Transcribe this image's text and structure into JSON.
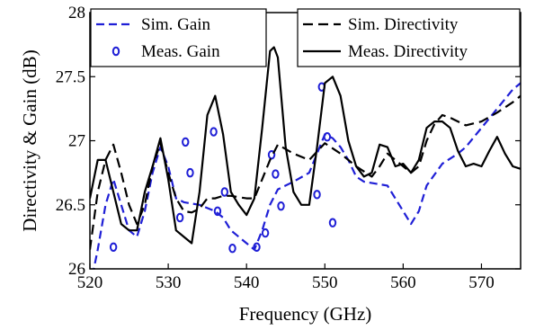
{
  "chart_data": {
    "type": "line",
    "title": "",
    "xlabel": "Frequency (GHz)",
    "ylabel": "Directivity & Gain (dB)",
    "xlim": [
      520,
      575
    ],
    "ylim": [
      26,
      28
    ],
    "xticks": [
      520,
      530,
      540,
      550,
      560,
      570
    ],
    "yticks": [
      26,
      26.5,
      27,
      27.5,
      28
    ],
    "xtick_labels": [
      "520",
      "530",
      "540",
      "550",
      "560",
      "570"
    ],
    "ytick_labels": [
      "26",
      "26.5",
      "27",
      "27.5",
      "28"
    ],
    "grid": false,
    "legends": [
      {
        "position": "top-left",
        "entries": [
          "Sim. Gain",
          "Meas. Gain"
        ]
      },
      {
        "position": "top-right",
        "entries": [
          "Sim. Directivity",
          "Meas. Directivity"
        ]
      }
    ],
    "series": [
      {
        "name": "Sim. Gain",
        "style": "dashed",
        "color": "#1f1fd6",
        "x": [
          520,
          521,
          522,
          523,
          524,
          525,
          526,
          527,
          528,
          529,
          530,
          531,
          532,
          534,
          536,
          537,
          538,
          540,
          541,
          542,
          543,
          544,
          546,
          548,
          549,
          550,
          551,
          552,
          553,
          554,
          555,
          558,
          560,
          561,
          562,
          563,
          565,
          567,
          568,
          570,
          572,
          574,
          575
        ],
        "y": [
          25.85,
          26.15,
          26.5,
          26.7,
          26.5,
          26.3,
          26.25,
          26.45,
          26.75,
          26.95,
          26.8,
          26.55,
          26.52,
          26.5,
          26.45,
          26.4,
          26.3,
          26.2,
          26.15,
          26.3,
          26.5,
          26.62,
          26.68,
          26.75,
          26.9,
          27.05,
          27.02,
          26.95,
          26.85,
          26.72,
          26.68,
          26.65,
          26.45,
          26.35,
          26.45,
          26.65,
          26.82,
          26.9,
          26.95,
          27.1,
          27.25,
          27.4,
          27.45
        ]
      },
      {
        "name": "Meas. Gain",
        "style": "markers",
        "color": "#1f1fd6",
        "x": [
          523,
          531.5,
          532.2,
          532.8,
          535.8,
          536.3,
          537.2,
          538.2,
          541.3,
          542.4,
          543.2,
          543.7,
          544.4,
          549,
          549.6,
          550.3,
          551
        ],
        "y": [
          26.17,
          26.4,
          26.99,
          26.75,
          27.07,
          26.45,
          26.6,
          26.16,
          26.17,
          26.28,
          26.89,
          26.74,
          26.49,
          26.58,
          27.42,
          27.03,
          26.36
        ]
      },
      {
        "name": "Sim. Directivity",
        "style": "dashed",
        "color": "#000000",
        "x": [
          520,
          521,
          522,
          523,
          524,
          525,
          526,
          527,
          528,
          529,
          530,
          531,
          532,
          533,
          534,
          535,
          536,
          537,
          538,
          540,
          541,
          542,
          543,
          544,
          546,
          548,
          550,
          552,
          554,
          556,
          557,
          558,
          560,
          561,
          562,
          563,
          564,
          565,
          566,
          568,
          570,
          572,
          574,
          575
        ],
        "y": [
          26.15,
          26.6,
          26.85,
          26.97,
          26.75,
          26.5,
          26.35,
          26.5,
          26.8,
          26.98,
          26.75,
          26.55,
          26.45,
          26.44,
          26.47,
          26.55,
          26.55,
          26.57,
          26.57,
          26.55,
          26.55,
          26.7,
          26.85,
          26.97,
          26.9,
          26.85,
          26.98,
          26.9,
          26.8,
          26.72,
          26.8,
          26.9,
          26.8,
          26.75,
          26.8,
          27.0,
          27.13,
          27.2,
          27.18,
          27.12,
          27.15,
          27.22,
          27.3,
          27.35
        ]
      },
      {
        "name": "Meas. Directivity",
        "style": "solid",
        "color": "#000000",
        "x": [
          520,
          521,
          522,
          523,
          524,
          525,
          526,
          527,
          528,
          529,
          530,
          531,
          532,
          533,
          534,
          535,
          536,
          537,
          538,
          539,
          540,
          541,
          542,
          543,
          543.5,
          544,
          545,
          546,
          547,
          548,
          549,
          550,
          551,
          552,
          553,
          554,
          555,
          556,
          557,
          558,
          559,
          560,
          561,
          562,
          563,
          564,
          565,
          566,
          567,
          568,
          569,
          570,
          571,
          572,
          573,
          574,
          575
        ],
        "y": [
          26.55,
          26.85,
          26.85,
          26.6,
          26.35,
          26.3,
          26.3,
          26.6,
          26.8,
          27.02,
          26.7,
          26.3,
          26.25,
          26.2,
          26.6,
          27.2,
          27.35,
          27.05,
          26.6,
          26.5,
          26.42,
          26.55,
          27.1,
          27.7,
          27.73,
          27.65,
          26.95,
          26.6,
          26.5,
          26.5,
          26.95,
          27.45,
          27.5,
          27.35,
          27.0,
          26.8,
          26.72,
          26.75,
          26.97,
          26.95,
          26.8,
          26.82,
          26.75,
          26.85,
          27.1,
          27.15,
          27.15,
          27.1,
          26.92,
          26.8,
          26.82,
          26.8,
          26.92,
          27.03,
          26.9,
          26.8,
          26.78
        ]
      }
    ]
  }
}
